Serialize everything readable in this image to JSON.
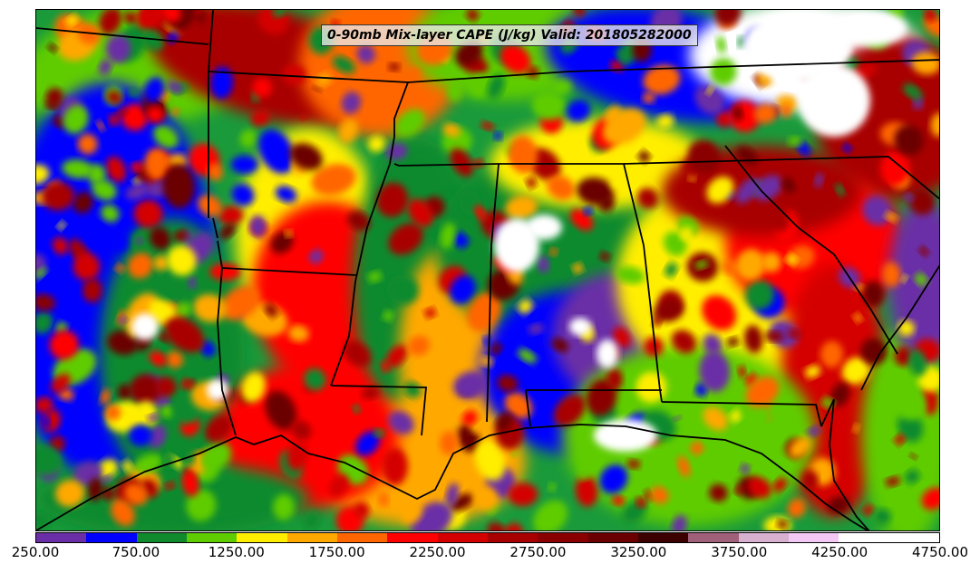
{
  "map": {
    "title": "0-90mb Mix-layer CAPE (J/kg) Valid: 201805282000",
    "field": "0-90mb Mix-layer CAPE",
    "units": "J/kg",
    "valid": "201805282000",
    "region": "Southeastern United States / Gulf of Mexico",
    "features": [
      "state-borders",
      "coastlines",
      "cape-contour-fill"
    ]
  },
  "legend": {
    "tick_labels": [
      "250.00",
      "750.00",
      "1250.00",
      "1750.00",
      "2250.00",
      "2750.00",
      "3250.00",
      "3750.00",
      "4250.00",
      "4750.00"
    ],
    "tick_values": [
      250,
      750,
      1250,
      1750,
      2250,
      2750,
      3250,
      3750,
      4250,
      4750
    ],
    "range": [
      250,
      4750
    ],
    "bin_colors": [
      "#6a2ea6",
      "#0000ff",
      "#118a2e",
      "#5fcc00",
      "#ffee00",
      "#ffa800",
      "#ff6600",
      "#ff0000",
      "#d40000",
      "#a80000",
      "#8a0000",
      "#6a0000",
      "#3d0000",
      "#a0607a",
      "#d8b0d0",
      "#f4c8f4",
      "#ffffff",
      "#ffffff"
    ]
  }
}
